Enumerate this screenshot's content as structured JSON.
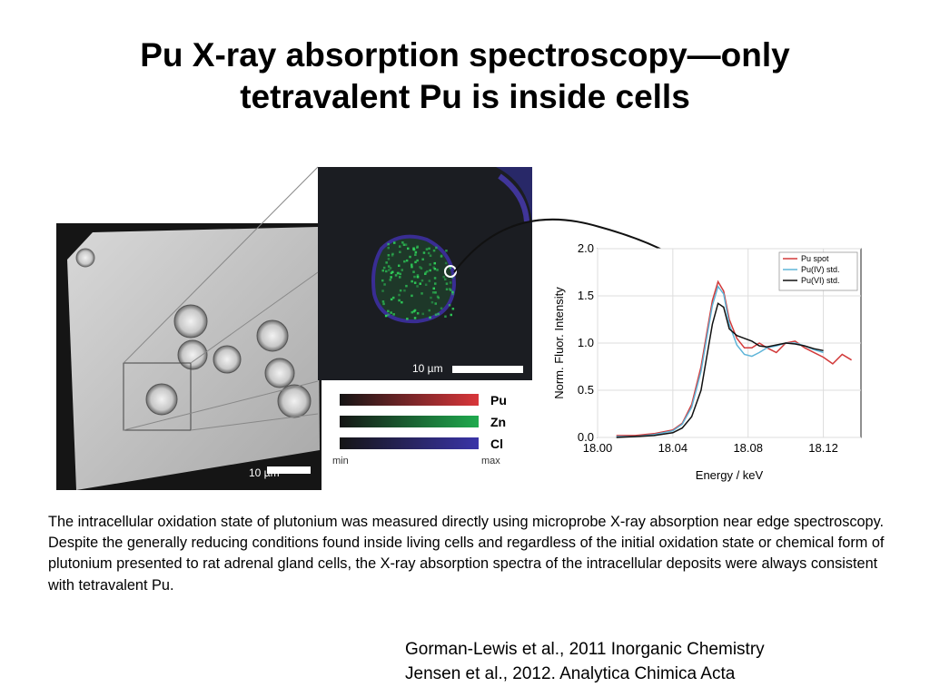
{
  "slide": {
    "title_line1": "Pu X-ray absorption spectroscopy—only",
    "title_line2": "tetravalent Pu is inside cells",
    "caption": "The intracellular oxidation state of plutonium was measured directly using microprobe X-ray absorption near edge spectroscopy. Despite the generally reducing conditions found inside living cells and regardless of the initial oxidation state or chemical form of plutonium presented to rat adrenal gland cells, the X-ray absorption spectra of the intracellular deposits were always consistent with tetravalent Pu.",
    "references": [
      "Gorman-Lewis et al., 2011 Inorganic Chemistry",
      "Jensen et al., 2012. Analytica Chimica Acta"
    ]
  },
  "figure": {
    "micrograph_scale_label": "10 µm",
    "map_scale_label": "10 µm",
    "color_scales": [
      {
        "element": "Pu",
        "color": "#d9363a"
      },
      {
        "element": "Zn",
        "color": "#1faa4e"
      },
      {
        "element": "Cl",
        "color": "#3a34a8"
      }
    ],
    "scale_min_label": "min",
    "scale_max_label": "max"
  },
  "chart_data": {
    "type": "line",
    "xlabel": "Energy / keV",
    "ylabel": "Norm. Fluor. Intensity",
    "xlim": [
      18.0,
      18.14
    ],
    "ylim": [
      0.0,
      2.0
    ],
    "xticks": [
      "18.00",
      "18.04",
      "18.08",
      "18.12"
    ],
    "yticks": [
      "0.0",
      "0.5",
      "1.0",
      "1.5",
      "2.0"
    ],
    "legend_position": "top-right",
    "series": [
      {
        "name": "Pu spot",
        "color": "#d23a3a",
        "x": [
          18.01,
          18.02,
          18.03,
          18.04,
          18.045,
          18.05,
          18.055,
          18.058,
          18.061,
          18.064,
          18.067,
          18.07,
          18.074,
          18.078,
          18.082,
          18.086,
          18.09,
          18.095,
          18.1,
          18.105,
          18.11,
          18.115,
          18.12,
          18.125,
          18.13,
          18.135
        ],
        "y": [
          0.02,
          0.02,
          0.04,
          0.08,
          0.15,
          0.35,
          0.75,
          1.1,
          1.45,
          1.65,
          1.55,
          1.25,
          1.05,
          0.95,
          0.95,
          1.0,
          0.95,
          0.9,
          1.0,
          1.02,
          0.95,
          0.9,
          0.85,
          0.78,
          0.88,
          0.82
        ]
      },
      {
        "name": "Pu(IV) std.",
        "color": "#5fb5d9",
        "x": [
          18.01,
          18.02,
          18.03,
          18.04,
          18.045,
          18.05,
          18.055,
          18.058,
          18.061,
          18.064,
          18.067,
          18.07,
          18.074,
          18.078,
          18.082,
          18.086,
          18.09,
          18.095,
          18.1,
          18.105,
          18.11,
          18.115,
          18.12
        ],
        "y": [
          0.01,
          0.01,
          0.03,
          0.07,
          0.14,
          0.32,
          0.7,
          1.05,
          1.4,
          1.6,
          1.52,
          1.2,
          0.98,
          0.88,
          0.86,
          0.9,
          0.95,
          0.97,
          1.0,
          1.0,
          0.97,
          0.93,
          0.9
        ]
      },
      {
        "name": "Pu(VI) std.",
        "color": "#111111",
        "x": [
          18.01,
          18.02,
          18.03,
          18.04,
          18.045,
          18.05,
          18.055,
          18.058,
          18.061,
          18.064,
          18.067,
          18.07,
          18.074,
          18.078,
          18.082,
          18.086,
          18.09,
          18.095,
          18.1,
          18.105,
          18.11,
          18.115,
          18.12
        ],
        "y": [
          0.0,
          0.01,
          0.02,
          0.05,
          0.1,
          0.22,
          0.5,
          0.85,
          1.2,
          1.42,
          1.38,
          1.15,
          1.08,
          1.05,
          1.02,
          0.97,
          0.96,
          0.98,
          1.0,
          0.99,
          0.97,
          0.94,
          0.92
        ]
      }
    ]
  }
}
